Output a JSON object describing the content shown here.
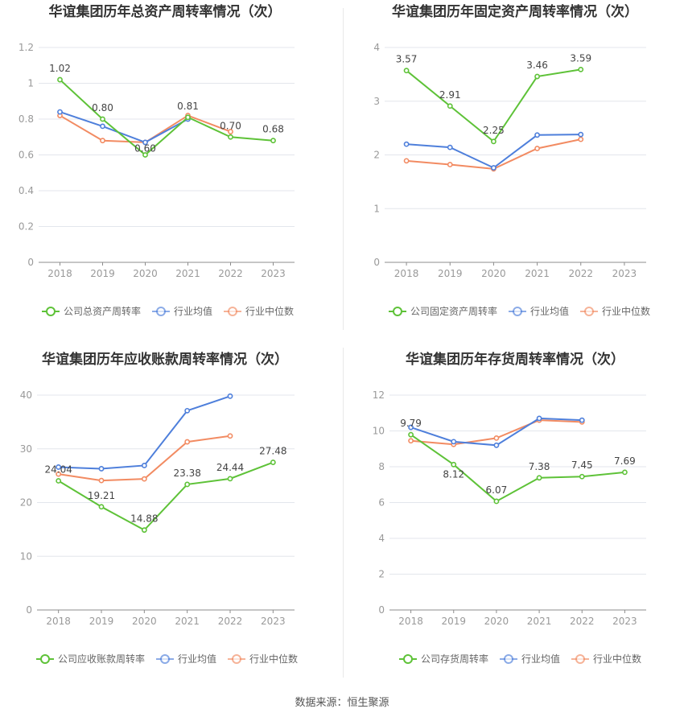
{
  "colors": {
    "company": "#5ec238",
    "avg": "#4e7fdb",
    "median": "#f28b62",
    "grid": "#e3e6ec",
    "axis": "#999999",
    "text": "#666666",
    "title": "#333333"
  },
  "source": "数据来源：恒生聚源",
  "chart_data": [
    {
      "type": "line",
      "title": "华谊集团历年总资产周转率情况（次）",
      "categories": [
        "2018",
        "2019",
        "2020",
        "2021",
        "2022",
        "2023"
      ],
      "ylim": [
        0,
        1.2
      ],
      "yticks": [
        "0",
        "0.2",
        "0.4",
        "0.6",
        "0.8",
        "1",
        "1.2"
      ],
      "grid": true,
      "legend": "bottom",
      "series": [
        {
          "name": "公司总资产周转率",
          "values": [
            1.02,
            0.8,
            0.6,
            0.81,
            0.7,
            0.68
          ],
          "labels": [
            "1.02",
            "0.80",
            "0.60",
            "0.81",
            "0.70",
            "0.68"
          ]
        },
        {
          "name": "行业均值",
          "values": [
            0.84,
            0.76,
            0.67,
            0.8,
            null,
            null
          ]
        },
        {
          "name": "行业中位数",
          "values": [
            0.82,
            0.68,
            0.67,
            0.82,
            0.73,
            null
          ]
        }
      ]
    },
    {
      "type": "line",
      "title": "华谊集团历年固定资产周转率情况（次）",
      "categories": [
        "2018",
        "2019",
        "2020",
        "2021",
        "2022",
        "2023"
      ],
      "ylim": [
        0,
        4
      ],
      "yticks": [
        "0",
        "1",
        "2",
        "3",
        "4"
      ],
      "grid": true,
      "legend": "bottom",
      "series": [
        {
          "name": "公司固定资产周转率",
          "values": [
            3.57,
            2.91,
            2.25,
            3.46,
            3.59,
            null
          ],
          "labels": [
            "3.57",
            "2.91",
            "2.25",
            "3.46",
            "3.59",
            ""
          ]
        },
        {
          "name": "行业均值",
          "values": [
            2.2,
            2.14,
            1.76,
            2.37,
            2.38,
            null
          ]
        },
        {
          "name": "行业中位数",
          "values": [
            1.89,
            1.82,
            1.74,
            2.12,
            2.29,
            null
          ]
        }
      ]
    },
    {
      "type": "line",
      "title": "华谊集团历年应收账款周转率情况（次）",
      "categories": [
        "2018",
        "2019",
        "2020",
        "2021",
        "2022",
        "2023"
      ],
      "ylim": [
        0,
        40
      ],
      "yticks": [
        "0",
        "10",
        "20",
        "30",
        "40"
      ],
      "grid": true,
      "legend": "bottom",
      "series": [
        {
          "name": "公司应收账款周转率",
          "values": [
            24.04,
            19.21,
            14.88,
            23.38,
            24.44,
            27.48
          ],
          "labels": [
            "24.04",
            "19.21",
            "14.88",
            "23.38",
            "24.44",
            "27.48"
          ]
        },
        {
          "name": "行业均值",
          "values": [
            26.6,
            26.3,
            26.9,
            37.1,
            39.8,
            null
          ]
        },
        {
          "name": "行业中位数",
          "values": [
            25.3,
            24.1,
            24.4,
            31.3,
            32.4,
            null
          ]
        }
      ]
    },
    {
      "type": "line",
      "title": "华谊集团历年存货周转率情况（次）",
      "categories": [
        "2018",
        "2019",
        "2020",
        "2021",
        "2022",
        "2023"
      ],
      "ylim": [
        0,
        12
      ],
      "yticks": [
        "0",
        "2",
        "4",
        "6",
        "8",
        "10",
        "12"
      ],
      "grid": true,
      "legend": "bottom",
      "series": [
        {
          "name": "公司存货周转率",
          "values": [
            9.79,
            8.12,
            6.07,
            7.38,
            7.45,
            7.69
          ],
          "labels": [
            "9.79",
            "8.12",
            "6.07",
            "7.38",
            "7.45",
            "7.69"
          ]
        },
        {
          "name": "行业均值",
          "values": [
            10.2,
            9.4,
            9.2,
            10.7,
            10.6,
            null
          ]
        },
        {
          "name": "行业中位数",
          "values": [
            9.45,
            9.25,
            9.6,
            10.6,
            10.5,
            null
          ]
        }
      ]
    }
  ]
}
